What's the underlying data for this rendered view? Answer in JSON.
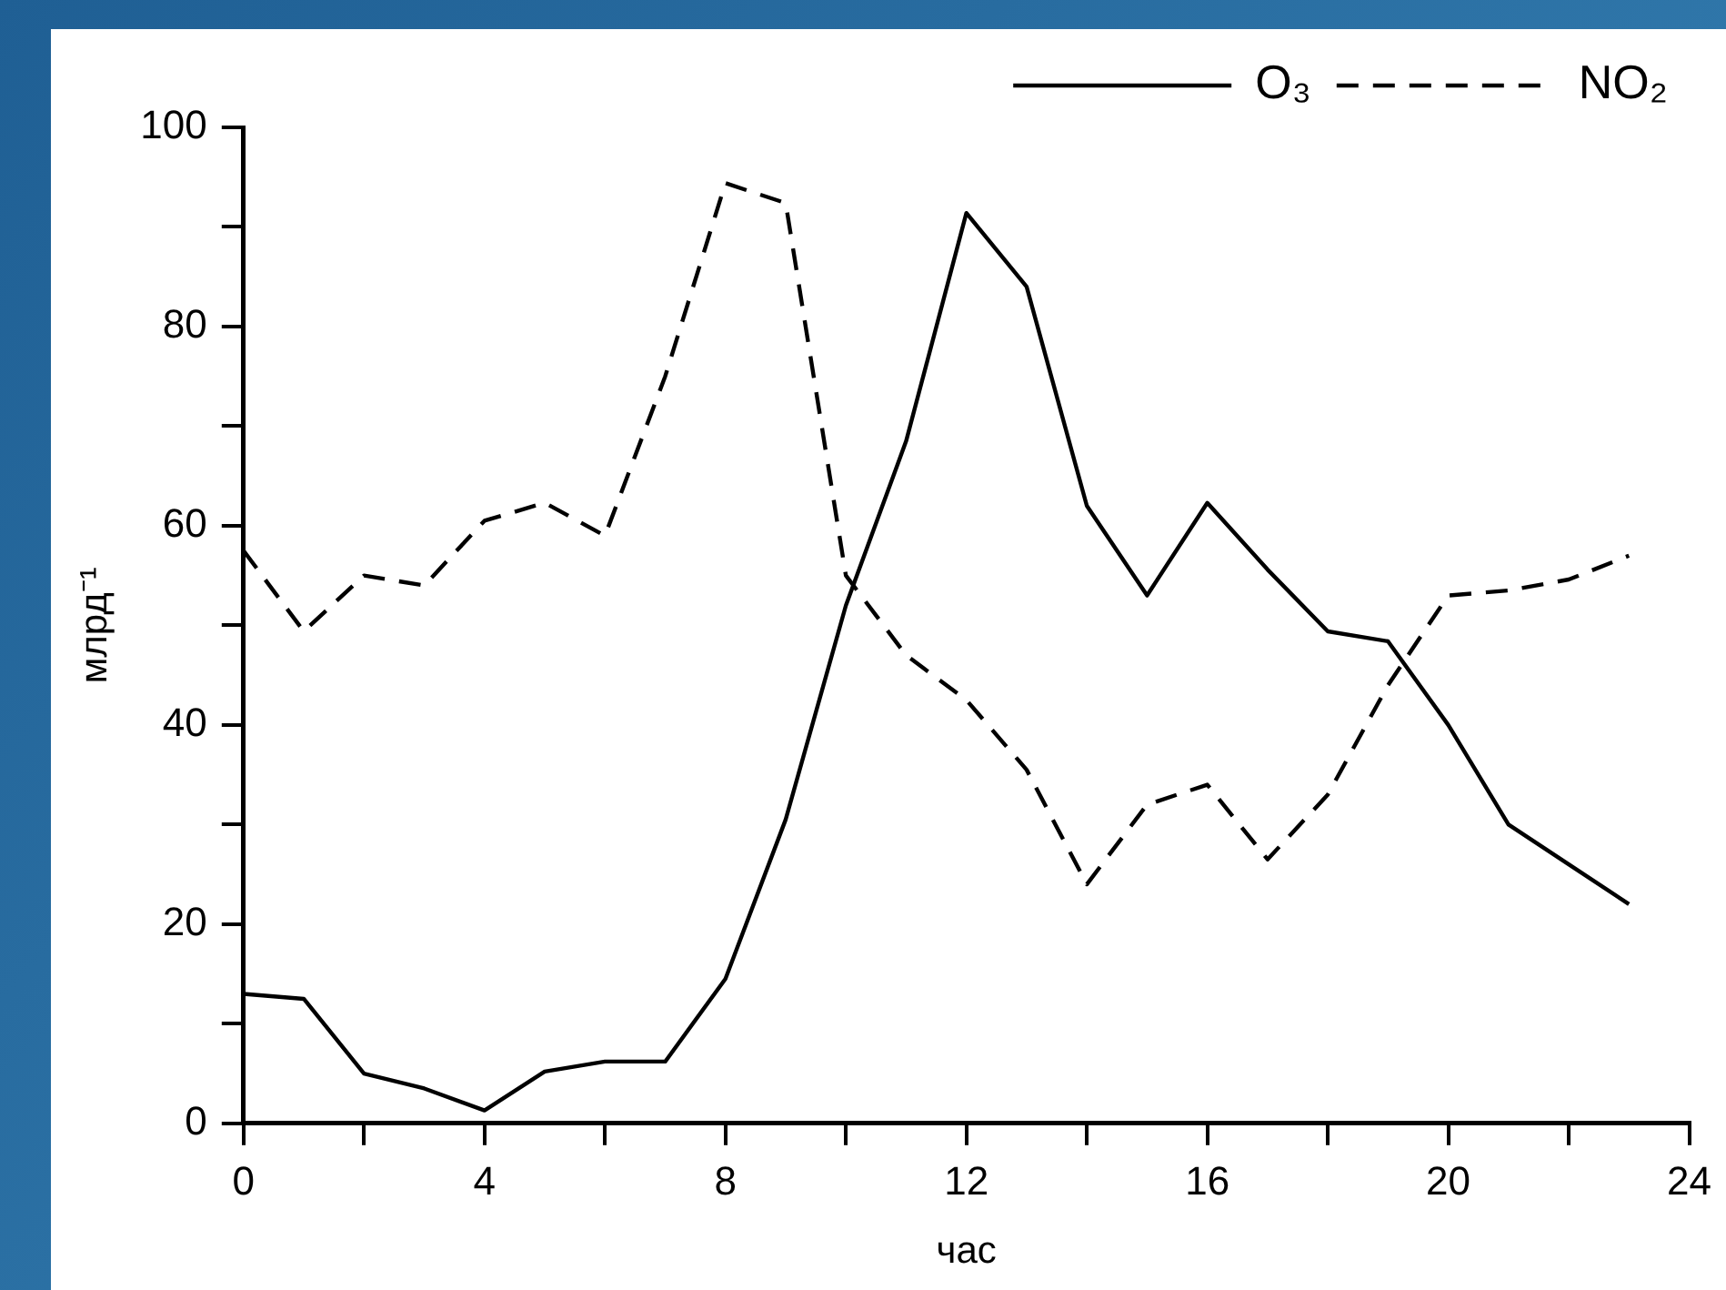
{
  "chart_data": {
    "type": "line",
    "xlabel": "час",
    "ylabel": "млрд⁻¹",
    "x": [
      0,
      1,
      2,
      3,
      4,
      5,
      6,
      7,
      8,
      9,
      10,
      11,
      12,
      13,
      14,
      15,
      16,
      17,
      18,
      19,
      20,
      21,
      22,
      23
    ],
    "series": [
      {
        "name": "O₃",
        "color": "#000000",
        "line_style": "solid",
        "values": [
          13,
          12.5,
          5,
          3.5,
          1.3,
          5.2,
          6.2,
          6.2,
          14.5,
          30.5,
          52,
          68.5,
          91.4,
          84,
          62,
          53,
          62.3,
          55.6,
          49.4,
          48.4,
          40,
          30,
          26,
          22
        ]
      },
      {
        "name": "NO₂",
        "color": "#000000",
        "line_style": "dashed",
        "values": [
          57.5,
          49.4,
          55,
          54,
          60.5,
          62.3,
          59,
          75,
          94.4,
          92.4,
          55,
          47,
          42.5,
          35.5,
          24,
          32,
          34,
          26.5,
          33,
          44,
          53,
          53.5,
          54.6,
          57
        ]
      }
    ],
    "xlim": [
      0,
      24
    ],
    "xticks": [
      0,
      {
        "value": 2,
        "label": null
      },
      4,
      {
        "value": 6,
        "label": null
      },
      8,
      {
        "value": 10,
        "label": null
      },
      12,
      {
        "value": 14,
        "label": null
      },
      16,
      {
        "value": 18,
        "label": null
      },
      20,
      {
        "value": 22,
        "label": null
      },
      24
    ],
    "ylim": [
      0,
      100
    ],
    "yticks": [
      0,
      {
        "value": 10,
        "label": null
      },
      20,
      {
        "value": 30,
        "label": null
      },
      40,
      {
        "value": 50,
        "label": null
      },
      60,
      {
        "value": 70,
        "label": null
      },
      80,
      {
        "value": 90,
        "label": null
      },
      100
    ],
    "grid": false,
    "legend": "top right",
    "marker": "none"
  }
}
